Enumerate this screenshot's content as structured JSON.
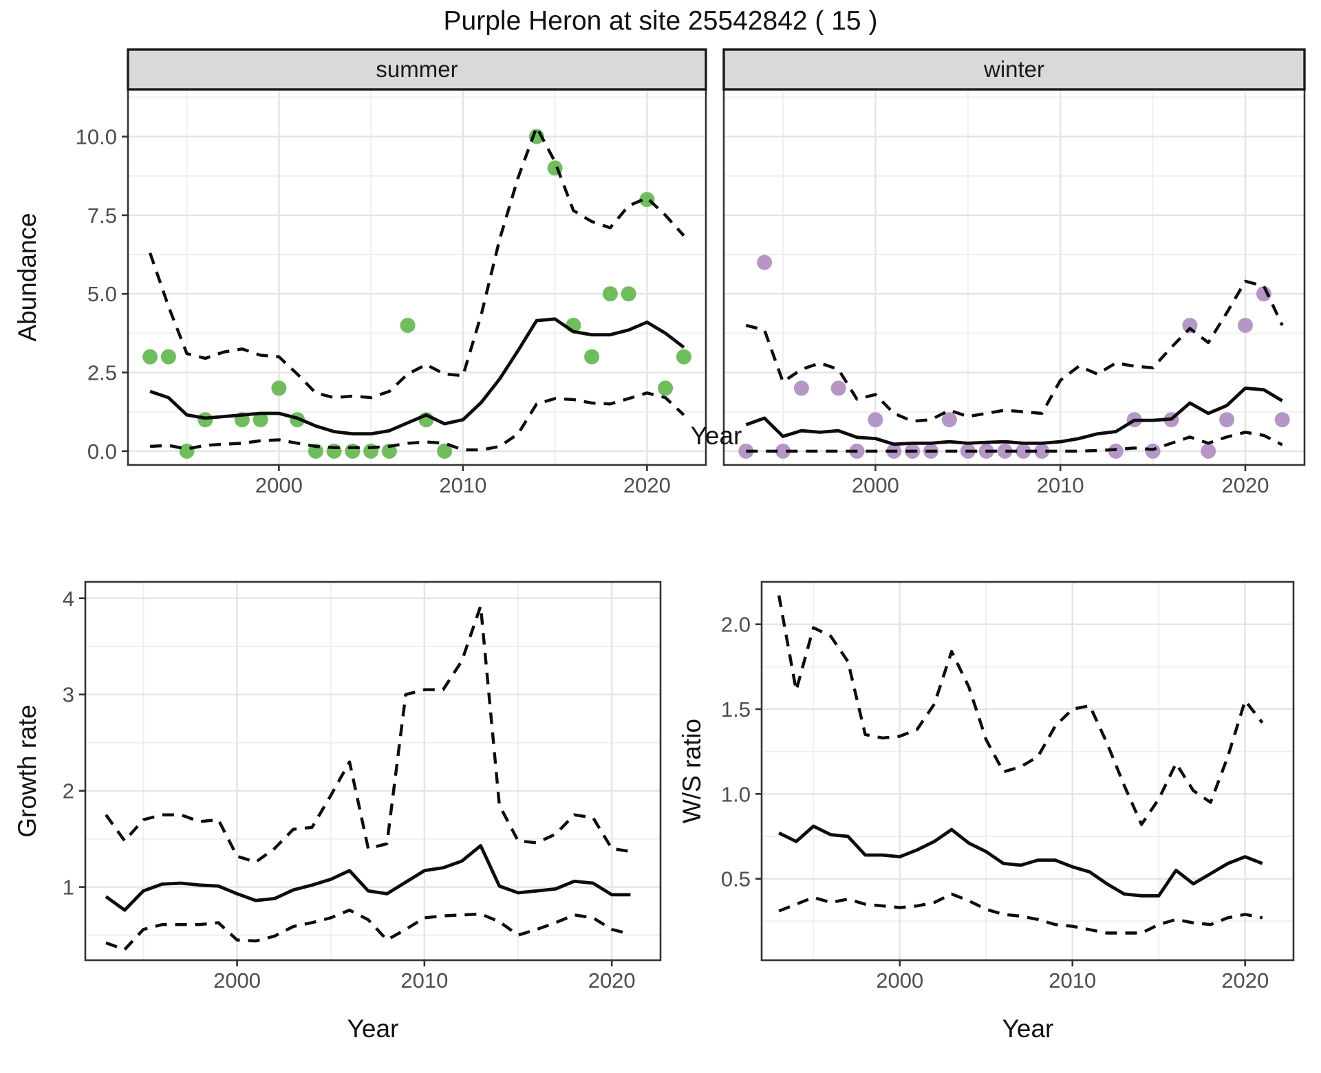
{
  "title": "Purple Heron at site 25542842 ( 15 )",
  "colors": {
    "background": "#ffffff",
    "summer_points": "#6ebf5b",
    "winter_points": "#b696c7",
    "line": "#0d0d0d",
    "strip_fill": "#d9d9d9",
    "strip_border": "#1a1a1a",
    "panel_border": "#333333",
    "grid_major": "#e4e4e4",
    "grid_minor": "#efefef",
    "tick_label": "#4d4d4d"
  },
  "top_row": {
    "y_axis_label": "Abundance",
    "x_axis_label": "Year",
    "facets": [
      {
        "label": "summer"
      },
      {
        "label": "winter"
      }
    ]
  },
  "bottom_row": {
    "left_y_axis_label": "Growth rate",
    "right_y_axis_label": "W/S ratio",
    "x_axis_label": "Year"
  },
  "chart_data": [
    {
      "id": "abundance-summer",
      "type": "line",
      "facet": "summer",
      "xlabel": "Year",
      "ylabel": "Abundance",
      "xlim": [
        1991.8,
        2023.2
      ],
      "ylim": [
        -0.44,
        11.5
      ],
      "x_ticks": [
        2000,
        2010,
        2020
      ],
      "x_tick_labels": [
        "2000",
        "2010",
        "2020"
      ],
      "x_minor": [
        1995,
        2005,
        2015
      ],
      "y_ticks": [
        0,
        2.5,
        5,
        7.5,
        10
      ],
      "y_tick_labels": [
        "0.0",
        "2.5",
        "5.0",
        "7.5",
        "10.0"
      ],
      "y_minor": [
        1.25,
        3.75,
        6.25,
        8.75,
        11.25
      ],
      "years": [
        1993,
        1994,
        1995,
        1996,
        1997,
        1998,
        1999,
        2000,
        2001,
        2002,
        2003,
        2004,
        2005,
        2006,
        2007,
        2008,
        2009,
        2010,
        2011,
        2012,
        2013,
        2014,
        2015,
        2016,
        2017,
        2018,
        2019,
        2020,
        2021,
        2022
      ],
      "series": [
        {
          "name": "median",
          "style": "solid",
          "values": [
            1.9,
            1.7,
            1.15,
            1.05,
            1.1,
            1.15,
            1.2,
            1.2,
            1.05,
            0.8,
            0.62,
            0.55,
            0.55,
            0.65,
            0.9,
            1.15,
            0.87,
            1.0,
            1.55,
            2.3,
            3.2,
            4.15,
            4.2,
            3.8,
            3.7,
            3.7,
            3.85,
            4.1,
            3.75,
            3.3
          ]
        },
        {
          "name": "upper_ci",
          "style": "dashed",
          "values": [
            6.3,
            4.6,
            3.1,
            2.95,
            3.15,
            3.25,
            3.05,
            3.0,
            2.45,
            1.85,
            1.7,
            1.75,
            1.7,
            1.9,
            2.45,
            2.75,
            2.45,
            2.4,
            4.35,
            6.75,
            8.7,
            10.3,
            9.2,
            7.65,
            7.3,
            7.1,
            7.8,
            8.05,
            7.5,
            6.85
          ]
        },
        {
          "name": "lower_ci",
          "style": "dashed",
          "values": [
            0.15,
            0.18,
            0.07,
            0.18,
            0.22,
            0.25,
            0.33,
            0.36,
            0.25,
            0.15,
            0.11,
            0.11,
            0.11,
            0.15,
            0.25,
            0.29,
            0.25,
            0.04,
            0.04,
            0.15,
            0.55,
            1.5,
            1.67,
            1.64,
            1.53,
            1.5,
            1.67,
            1.85,
            1.7,
            1.15
          ]
        }
      ],
      "points": {
        "name": "summer_observations",
        "color_key": "summer_points",
        "x": [
          1993,
          1994,
          1995,
          1996,
          1998,
          1999,
          2000,
          2001,
          2002,
          2003,
          2004,
          2005,
          2006,
          2007,
          2008,
          2009,
          2014,
          2015,
          2016,
          2017,
          2018,
          2019,
          2020,
          2021,
          2022
        ],
        "y": [
          3,
          3,
          0,
          1,
          1,
          1,
          2,
          1,
          0,
          0,
          0,
          0,
          0,
          4,
          1,
          0,
          10,
          9,
          4,
          3,
          5,
          5,
          8,
          2,
          3
        ]
      }
    },
    {
      "id": "abundance-winter",
      "type": "line",
      "facet": "winter",
      "xlabel": "Year",
      "ylabel": "Abundance",
      "xlim": [
        1991.8,
        2023.2
      ],
      "ylim": [
        -0.44,
        11.5
      ],
      "x_ticks": [
        2000,
        2010,
        2020
      ],
      "x_tick_labels": [
        "2000",
        "2010",
        "2020"
      ],
      "x_minor": [
        1995,
        2005,
        2015
      ],
      "y_ticks": [
        0,
        2.5,
        5,
        7.5,
        10
      ],
      "y_tick_labels": [],
      "y_minor": [
        1.25,
        3.75,
        6.25,
        8.75,
        11.25
      ],
      "years": [
        1993,
        1994,
        1995,
        1996,
        1997,
        1998,
        1999,
        2000,
        2001,
        2002,
        2003,
        2004,
        2005,
        2006,
        2007,
        2008,
        2009,
        2010,
        2011,
        2012,
        2013,
        2014,
        2015,
        2016,
        2017,
        2018,
        2019,
        2020,
        2021,
        2022
      ],
      "series": [
        {
          "name": "median",
          "style": "solid",
          "values": [
            0.84,
            1.05,
            0.47,
            0.65,
            0.6,
            0.65,
            0.44,
            0.4,
            0.22,
            0.25,
            0.25,
            0.3,
            0.25,
            0.28,
            0.3,
            0.25,
            0.25,
            0.3,
            0.4,
            0.55,
            0.62,
            0.98,
            0.98,
            1.02,
            1.53,
            1.2,
            1.45,
            2.0,
            1.95,
            1.6
          ]
        },
        {
          "name": "upper_ci",
          "style": "dashed",
          "values": [
            4.0,
            3.85,
            2.2,
            2.6,
            2.8,
            2.6,
            1.65,
            1.8,
            1.2,
            0.95,
            1.0,
            1.3,
            1.1,
            1.2,
            1.3,
            1.25,
            1.2,
            2.25,
            2.7,
            2.45,
            2.8,
            2.7,
            2.65,
            3.3,
            3.9,
            3.45,
            4.4,
            5.4,
            5.25,
            4.0
          ]
        },
        {
          "name": "lower_ci",
          "style": "dashed",
          "values": [
            0,
            0,
            0,
            0,
            0,
            0,
            0,
            0,
            0,
            0,
            0,
            0,
            0,
            0,
            0,
            0,
            0,
            0,
            0,
            0.02,
            0.05,
            0.1,
            0.05,
            0.25,
            0.45,
            0.25,
            0.45,
            0.6,
            0.5,
            0.2
          ]
        }
      ],
      "points": {
        "name": "winter_observations",
        "color_key": "winter_points",
        "x": [
          1993,
          1994,
          1995,
          1996,
          1998,
          1999,
          2000,
          2001,
          2002,
          2003,
          2004,
          2005,
          2006,
          2007,
          2008,
          2009,
          2013,
          2014,
          2015,
          2016,
          2017,
          2018,
          2019,
          2020,
          2021,
          2022
        ],
        "y": [
          0,
          6,
          0,
          2,
          2,
          0,
          1,
          0,
          0,
          0,
          1,
          0,
          0,
          0,
          0,
          0,
          0,
          1,
          0,
          1,
          4,
          0,
          1,
          4,
          5,
          1
        ]
      }
    },
    {
      "id": "growth-rate",
      "type": "line",
      "xlabel": "Year",
      "ylabel": "Growth rate",
      "xlim": [
        1991.9,
        2022.6
      ],
      "ylim": [
        0.24,
        4.17
      ],
      "x_ticks": [
        2000,
        2010,
        2020
      ],
      "x_tick_labels": [
        "2000",
        "2010",
        "2020"
      ],
      "x_minor": [
        1995,
        2005,
        2015
      ],
      "y_ticks": [
        1,
        2,
        3,
        4
      ],
      "y_tick_labels": [
        "1",
        "2",
        "3",
        "4"
      ],
      "y_minor": [
        0.5,
        1.5,
        2.5,
        3.5
      ],
      "years": [
        1993,
        1994,
        1995,
        1996,
        1997,
        1998,
        1999,
        2000,
        2001,
        2002,
        2003,
        2004,
        2005,
        2006,
        2007,
        2008,
        2009,
        2010,
        2011,
        2012,
        2013,
        2014,
        2015,
        2016,
        2017,
        2018,
        2019,
        2020,
        2021
      ],
      "series": [
        {
          "name": "median",
          "style": "solid",
          "values": [
            0.9,
            0.76,
            0.96,
            1.03,
            1.04,
            1.02,
            1.01,
            0.93,
            0.86,
            0.88,
            0.97,
            1.02,
            1.08,
            1.17,
            0.96,
            0.93,
            1.05,
            1.17,
            1.2,
            1.27,
            1.43,
            1.01,
            0.94,
            0.96,
            0.98,
            1.06,
            1.04,
            0.92,
            0.92
          ]
        },
        {
          "name": "upper_ci",
          "style": "dashed",
          "values": [
            1.75,
            1.48,
            1.7,
            1.75,
            1.75,
            1.68,
            1.7,
            1.32,
            1.26,
            1.4,
            1.6,
            1.62,
            1.95,
            2.3,
            1.4,
            1.45,
            3.0,
            3.05,
            3.05,
            3.35,
            3.92,
            1.85,
            1.48,
            1.46,
            1.55,
            1.75,
            1.72,
            1.4,
            1.37
          ]
        },
        {
          "name": "lower_ci",
          "style": "dashed",
          "values": [
            0.42,
            0.35,
            0.56,
            0.61,
            0.61,
            0.61,
            0.63,
            0.45,
            0.44,
            0.49,
            0.59,
            0.63,
            0.68,
            0.76,
            0.66,
            0.45,
            0.56,
            0.68,
            0.7,
            0.71,
            0.72,
            0.64,
            0.5,
            0.56,
            0.63,
            0.71,
            0.68,
            0.56,
            0.51
          ]
        }
      ]
    },
    {
      "id": "ws-ratio",
      "type": "line",
      "xlabel": "Year",
      "ylabel": "W/S ratio",
      "xlim": [
        1992.0,
        2022.8
      ],
      "ylim": [
        0.02,
        2.25
      ],
      "x_ticks": [
        2000,
        2010,
        2020
      ],
      "x_tick_labels": [
        "2000",
        "2010",
        "2020"
      ],
      "x_minor": [
        1995,
        2005,
        2015
      ],
      "y_ticks": [
        0.5,
        1.0,
        1.5,
        2.0
      ],
      "y_tick_labels": [
        "0.5",
        "1.0",
        "1.5",
        "2.0"
      ],
      "y_minor": [
        0.25,
        0.75,
        1.25,
        1.75
      ],
      "years": [
        1993,
        1994,
        1995,
        1996,
        1997,
        1998,
        1999,
        2000,
        2001,
        2002,
        2003,
        2004,
        2005,
        2006,
        2007,
        2008,
        2009,
        2010,
        2011,
        2012,
        2013,
        2014,
        2015,
        2016,
        2017,
        2018,
        2019,
        2020,
        2021
      ],
      "series": [
        {
          "name": "median",
          "style": "solid",
          "values": [
            0.77,
            0.72,
            0.81,
            0.76,
            0.75,
            0.64,
            0.64,
            0.63,
            0.67,
            0.72,
            0.79,
            0.71,
            0.66,
            0.59,
            0.58,
            0.61,
            0.61,
            0.57,
            0.54,
            0.47,
            0.41,
            0.4,
            0.4,
            0.55,
            0.47,
            0.53,
            0.59,
            0.63,
            0.59
          ]
        },
        {
          "name": "upper_ci",
          "style": "dashed",
          "values": [
            2.17,
            1.61,
            1.98,
            1.93,
            1.78,
            1.35,
            1.33,
            1.34,
            1.38,
            1.53,
            1.84,
            1.63,
            1.32,
            1.13,
            1.16,
            1.22,
            1.4,
            1.5,
            1.52,
            1.3,
            1.05,
            0.82,
            0.97,
            1.18,
            1.02,
            0.95,
            1.22,
            1.55,
            1.42
          ]
        },
        {
          "name": "lower_ci",
          "style": "dashed",
          "values": [
            0.31,
            0.35,
            0.39,
            0.36,
            0.38,
            0.35,
            0.34,
            0.33,
            0.34,
            0.36,
            0.41,
            0.37,
            0.32,
            0.29,
            0.28,
            0.26,
            0.23,
            0.22,
            0.2,
            0.18,
            0.18,
            0.18,
            0.23,
            0.26,
            0.24,
            0.23,
            0.27,
            0.29,
            0.27
          ]
        }
      ]
    }
  ]
}
